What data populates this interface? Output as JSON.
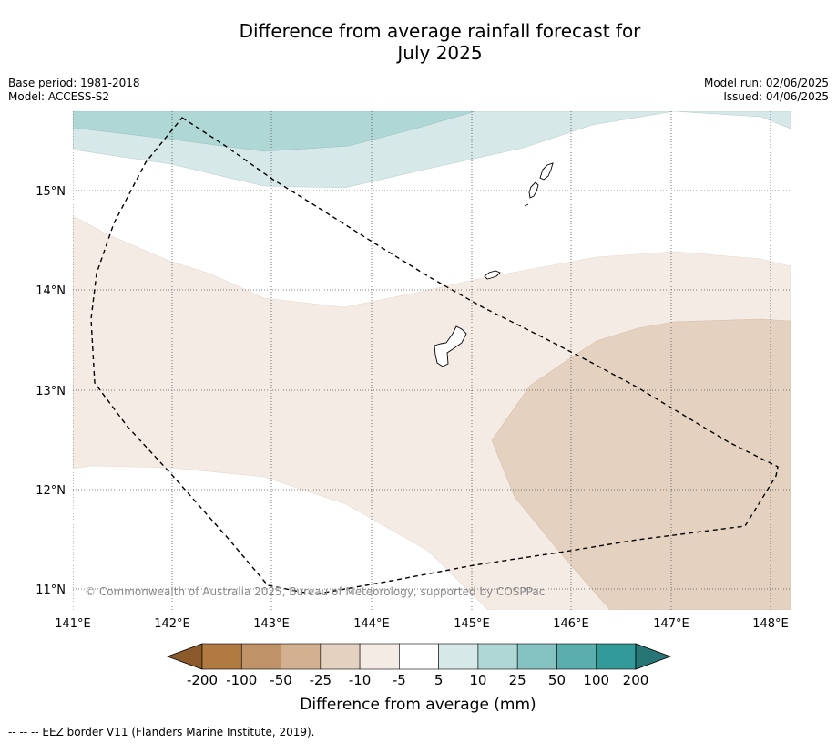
{
  "title": {
    "line1": "Difference from average rainfall forecast for",
    "line2": "July 2025"
  },
  "meta": {
    "base_period": "Base period: 1981-2018",
    "model": "Model: ACCESS-S2",
    "model_run": "Model run: 02/06/2025",
    "issued": "Issued: 04/06/2025"
  },
  "map": {
    "lat_labels": [
      "15°N",
      "14°N",
      "13°N",
      "12°N",
      "11°N"
    ],
    "lon_labels": [
      "141°E",
      "142°E",
      "143°E",
      "144°E",
      "145°E",
      "146°E",
      "147°E",
      "148°E"
    ],
    "copyright": "© Commonwealth of Australia 2025, Bureau of Meteorology, supported by COSPPac"
  },
  "colorbar": {
    "ticks": [
      "-200",
      "-100",
      "-50",
      "-25",
      "-10",
      "-5",
      "5",
      "10",
      "25",
      "50",
      "100",
      "200"
    ],
    "colors": [
      "#8c5a2a",
      "#b07a40",
      "#c09268",
      "#d3b08f",
      "#e4d1bf",
      "#f4ebe5",
      "#ffffff",
      "#d6e9e8",
      "#aed7d5",
      "#85c2c2",
      "#5aaeae",
      "#329a98",
      "#277574"
    ],
    "label": "Difference from average (mm)"
  },
  "footnote": "-- -- -- EEZ border V11 (Flanders Marine Institute, 2019)."
}
